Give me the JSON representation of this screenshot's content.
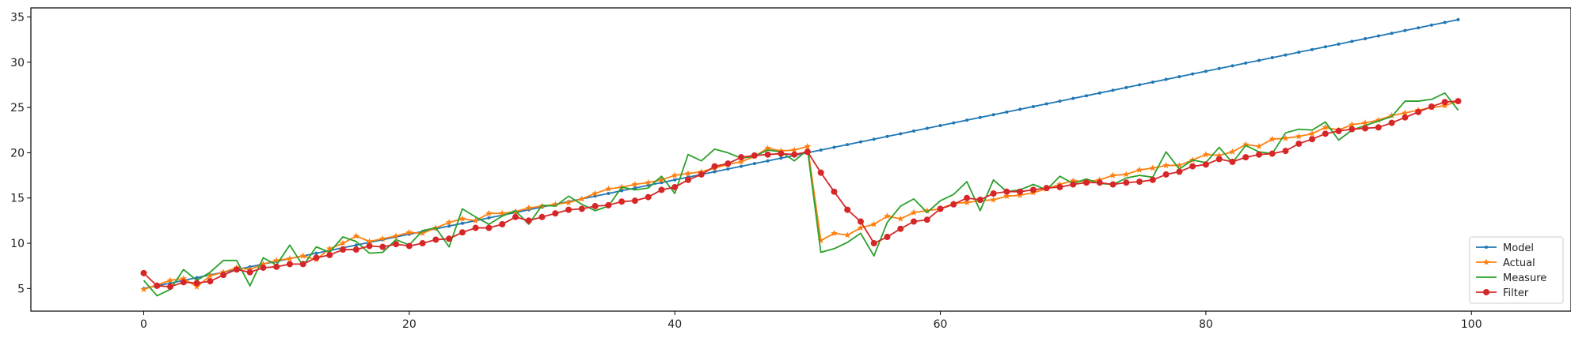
{
  "chart_data": {
    "type": "line",
    "title": "",
    "xlabel": "",
    "ylabel": "",
    "xlim": [
      -8.5,
      107.5
    ],
    "ylim": [
      2.5,
      36
    ],
    "xticks": [
      0,
      20,
      40,
      60,
      80,
      100
    ],
    "yticks": [
      5,
      10,
      15,
      20,
      25,
      30,
      35
    ],
    "grid": false,
    "legend": "bottom-right",
    "x": [
      0,
      1,
      2,
      3,
      4,
      5,
      6,
      7,
      8,
      9,
      10,
      11,
      12,
      13,
      14,
      15,
      16,
      17,
      18,
      19,
      20,
      21,
      22,
      23,
      24,
      25,
      26,
      27,
      28,
      29,
      30,
      31,
      32,
      33,
      34,
      35,
      36,
      37,
      38,
      39,
      40,
      41,
      42,
      43,
      44,
      45,
      46,
      47,
      48,
      49,
      50,
      51,
      52,
      53,
      54,
      55,
      56,
      57,
      58,
      59,
      60,
      61,
      62,
      63,
      64,
      65,
      66,
      67,
      68,
      69,
      70,
      71,
      72,
      73,
      74,
      75,
      76,
      77,
      78,
      79,
      80,
      81,
      82,
      83,
      84,
      85,
      86,
      87,
      88,
      89,
      90,
      91,
      92,
      93,
      94,
      95,
      96,
      97,
      98,
      99
    ],
    "series": [
      {
        "name": "Model",
        "color": "#1f77b4",
        "marker": "point",
        "values": [
          5.0,
          5.3,
          5.6,
          5.9,
          6.2,
          6.5,
          6.8,
          7.1,
          7.4,
          7.7,
          8.0,
          8.3,
          8.6,
          8.9,
          9.2,
          9.5,
          9.8,
          10.1,
          10.4,
          10.7,
          11.0,
          11.3,
          11.6,
          11.9,
          12.2,
          12.5,
          12.8,
          13.1,
          13.4,
          13.7,
          14.0,
          14.3,
          14.6,
          14.9,
          15.2,
          15.5,
          15.8,
          16.1,
          16.4,
          16.7,
          17.0,
          17.3,
          17.6,
          17.9,
          18.2,
          18.5,
          18.8,
          19.1,
          19.4,
          19.7,
          20.0,
          20.3,
          20.6,
          20.9,
          21.2,
          21.5,
          21.8,
          22.1,
          22.4,
          22.7,
          23.0,
          23.3,
          23.6,
          23.9,
          24.2,
          24.5,
          24.8,
          25.1,
          25.4,
          25.7,
          26.0,
          26.3,
          26.6,
          26.9,
          27.2,
          27.5,
          27.8,
          28.1,
          28.4,
          28.7,
          29.0,
          29.3,
          29.6,
          29.9,
          30.2,
          30.5,
          30.8,
          31.1,
          31.4,
          31.7,
          32.0,
          32.3,
          32.6,
          32.9,
          33.2,
          33.5,
          33.8,
          34.1,
          34.4,
          34.7
        ]
      },
      {
        "name": "Actual",
        "color": "#ff7f0e",
        "marker": "star",
        "values": [
          4.9,
          5.4,
          5.9,
          6.1,
          5.2,
          6.4,
          6.8,
          7.3,
          7.1,
          7.7,
          8.1,
          8.3,
          8.6,
          8.2,
          9.4,
          10.0,
          10.8,
          10.2,
          10.5,
          10.8,
          11.2,
          11.1,
          11.7,
          12.3,
          12.7,
          12.5,
          13.3,
          13.3,
          13.5,
          13.9,
          14.1,
          14.3,
          14.5,
          14.9,
          15.5,
          16.0,
          16.2,
          16.5,
          16.7,
          17.0,
          17.5,
          17.7,
          17.9,
          18.3,
          18.7,
          19.0,
          19.6,
          20.5,
          20.2,
          20.3,
          20.7,
          10.3,
          11.1,
          10.9,
          11.7,
          12.1,
          13.0,
          12.7,
          13.4,
          13.6,
          13.8,
          14.4,
          14.5,
          14.7,
          14.8,
          15.2,
          15.3,
          15.6,
          16.0,
          16.5,
          16.9,
          16.8,
          17.0,
          17.5,
          17.6,
          18.1,
          18.3,
          18.6,
          18.6,
          19.2,
          19.8,
          19.7,
          20.1,
          20.9,
          20.7,
          21.5,
          21.6,
          21.8,
          22.1,
          22.8,
          22.5,
          23.1,
          23.3,
          23.6,
          24.1,
          24.4,
          24.7,
          25.0,
          25.2,
          25.7
        ]
      },
      {
        "name": "Measure",
        "color": "#2ca02c",
        "marker": "none",
        "values": [
          5.9,
          4.2,
          4.9,
          7.1,
          5.9,
          6.8,
          8.1,
          8.1,
          5.3,
          8.4,
          7.6,
          9.8,
          7.5,
          9.6,
          9.0,
          10.7,
          10.2,
          8.9,
          9.0,
          10.4,
          9.8,
          11.4,
          11.7,
          9.6,
          13.8,
          12.9,
          12.1,
          13.0,
          13.6,
          12.1,
          14.2,
          14.1,
          15.2,
          14.3,
          13.6,
          14.1,
          16.2,
          15.9,
          16.1,
          17.4,
          15.5,
          19.8,
          19.1,
          20.4,
          20.0,
          19.4,
          19.6,
          20.3,
          20.1,
          19.1,
          20.3,
          9.0,
          9.4,
          10.1,
          11.1,
          8.6,
          12.3,
          14.1,
          14.9,
          13.4,
          14.7,
          15.4,
          16.8,
          13.6,
          17.0,
          15.7,
          15.9,
          16.5,
          15.9,
          17.4,
          16.6,
          17.1,
          16.6,
          16.5,
          17.2,
          17.5,
          17.3,
          20.1,
          18.2,
          19.2,
          18.9,
          20.6,
          18.9,
          20.8,
          20.1,
          19.9,
          22.2,
          22.6,
          22.5,
          23.4,
          21.4,
          22.5,
          23.0,
          23.5,
          24.0,
          25.7,
          25.7,
          25.9,
          26.6,
          24.7
        ]
      },
      {
        "name": "Filter",
        "color": "#d62728",
        "marker": "circle",
        "values": [
          6.7,
          5.3,
          5.2,
          5.7,
          5.6,
          5.8,
          6.5,
          7.1,
          6.8,
          7.3,
          7.4,
          7.7,
          7.7,
          8.4,
          8.7,
          9.3,
          9.3,
          9.7,
          9.6,
          9.9,
          9.7,
          10.0,
          10.4,
          10.5,
          11.2,
          11.7,
          11.7,
          12.1,
          12.9,
          12.5,
          12.9,
          13.3,
          13.7,
          13.8,
          14.1,
          14.2,
          14.6,
          14.7,
          15.1,
          15.9,
          16.2,
          17.0,
          17.6,
          18.5,
          18.8,
          19.5,
          19.7,
          19.8,
          19.9,
          19.8,
          20.1,
          17.8,
          15.7,
          13.7,
          12.4,
          10.0,
          10.7,
          11.6,
          12.4,
          12.6,
          13.8,
          14.3,
          15.0,
          14.8,
          15.5,
          15.7,
          15.7,
          15.9,
          16.1,
          16.2,
          16.5,
          16.7,
          16.7,
          16.5,
          16.7,
          16.8,
          17.0,
          17.6,
          17.9,
          18.5,
          18.7,
          19.3,
          19.0,
          19.5,
          19.8,
          19.9,
          20.2,
          21.0,
          21.5,
          22.1,
          22.4,
          22.6,
          22.7,
          22.8,
          23.3,
          23.9,
          24.5,
          25.1,
          25.6,
          25.7
        ]
      }
    ]
  }
}
